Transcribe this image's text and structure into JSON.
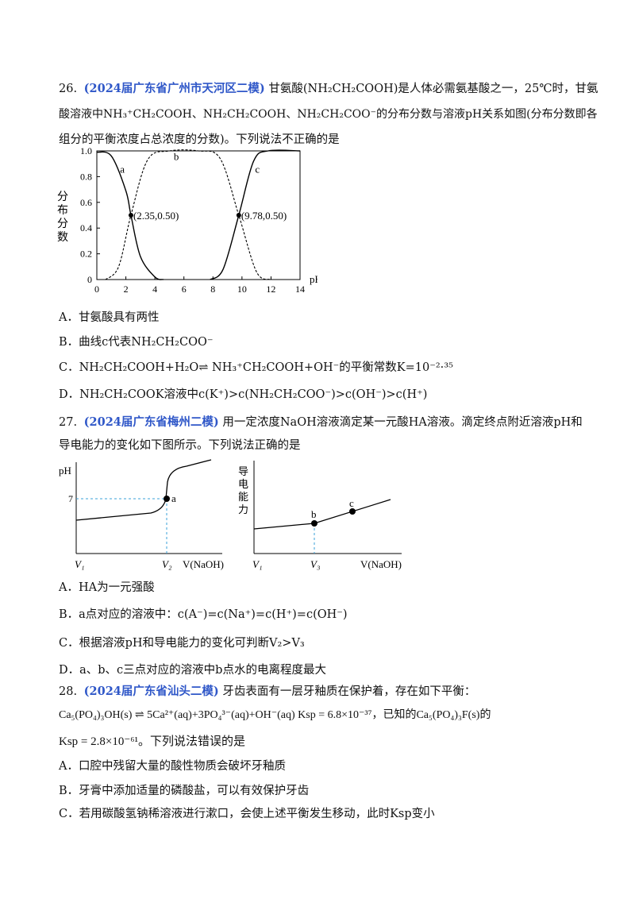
{
  "q26": {
    "number": "26.",
    "source": "(2024届广东省广州市天河区二模)",
    "line1_text": "甘氨酸(NH₂CH₂COOH)是人体必需氨基酸之一，25℃时，甘氨",
    "line2_text": "酸溶液中NH₃⁺CH₂COOH、NH₂CH₂COOH、NH₂CH₂COO⁻的分布分数与溶液pH关系如图(分布分数即各",
    "line3_text": "组分的平衡浓度占总浓度的分数)。下列说法不正确的是",
    "options": [
      "A．甘氨酸具有两性",
      "B．曲线c代表NH₂CH₂COO⁻",
      "C．NH₂CH₂COOH+H₂O⇌ NH₃⁺CH₂COOH+OH⁻的平衡常数K=10⁻²·³⁵",
      "D．NH₂CH₂COOK溶液中c(K⁺)>c(NH₂CH₂COO⁻)>c(OH⁻)>c(H⁺)"
    ]
  },
  "chart_data": [
    {
      "type": "line",
      "ylabel": "分布分数",
      "xlabel": "pH",
      "xlim": [
        0,
        14
      ],
      "ylim": [
        0,
        1.0
      ],
      "x_ticks": [
        "0",
        "2",
        "4",
        "6",
        "8",
        "10",
        "12",
        "14"
      ],
      "y_ticks": [
        "0",
        "0.2",
        "0.4",
        "0.6",
        "0.8",
        "1.0"
      ],
      "series": [
        {
          "name": "a",
          "style": "solid",
          "x": [
            0,
            1,
            2,
            2.35,
            3,
            4,
            4.6
          ],
          "y": [
            0.99,
            0.96,
            0.69,
            0.5,
            0.18,
            0.02,
            0
          ]
        },
        {
          "name": "b",
          "style": "dashed",
          "x": [
            0.6,
            1.5,
            2.35,
            3.5,
            5,
            7,
            8.5,
            9.78,
            11,
            12
          ],
          "y": [
            0,
            0.1,
            0.5,
            0.93,
            1.0,
            1.0,
            0.94,
            0.5,
            0.06,
            0
          ]
        },
        {
          "name": "c",
          "style": "solid",
          "x": [
            7.8,
            8.7,
            9.78,
            10.8,
            11.8,
            14
          ],
          "y": [
            0,
            0.08,
            0.5,
            0.92,
            1.0,
            1.0
          ]
        }
      ],
      "points": [
        {
          "x": 2.35,
          "y": 0.5,
          "label": "(2.35,0.50)"
        },
        {
          "x": 9.78,
          "y": 0.5,
          "label": "(9.78,0.50)"
        }
      ]
    },
    {
      "type": "line",
      "ylabel": "pH",
      "xlabel": "V(NaOH)",
      "x_ticks": [
        "V₁",
        "V₂"
      ],
      "y_ticks": [
        "7"
      ],
      "points": [
        {
          "label": "a"
        }
      ]
    },
    {
      "type": "line",
      "ylabel": "导电能力",
      "xlabel": "V(NaOH)",
      "x_ticks": [
        "V₁",
        "V₃"
      ],
      "points": [
        {
          "label": "b"
        },
        {
          "label": "c"
        }
      ]
    }
  ],
  "q27": {
    "number": "27.",
    "source": "(2024届广东省梅州二模)",
    "line1_text": "用一定浓度NaOH溶液滴定某一元酸HA溶液。滴定终点附近溶液pH和",
    "line2_text": "导电能力的变化如下图所示。下列说法正确的是",
    "options": [
      "A．HA为一元强酸",
      "B．a点对应的溶液中：c(A⁻)=c(Na⁺)=c(H⁺)=c(OH⁻)",
      "C．根据溶液pH和导电能力的变化可判断V₂>V₃",
      "D．a、b、c三点对应的溶液中b点水的电离程度最大"
    ]
  },
  "q28": {
    "number": "28.",
    "source": "(2024届广东省汕头二模)",
    "line1_text": "牙齿表面有一层牙釉质在保护着，存在如下平衡：",
    "line2_text": "Ca₅(PO₄)₃OH(s) ⇌ 5Ca²⁺(aq)+3PO₄³⁻(aq)+OH⁻(aq)   Ksp = 6.8×10⁻³⁷，已知的Ca₅(PO₄)₃F(s)的",
    "line3_text": "Ksp = 2.8×10⁻⁶¹。下列说法错误的是",
    "options": [
      "A．口腔中残留大量的酸性物质会破坏牙釉质",
      "B．牙膏中添加适量的磷酸盐，可以有效保护牙齿",
      "C．若用碳酸氢钠稀溶液进行漱口，会使上述平衡发生移动，此时Ksp变小"
    ]
  }
}
